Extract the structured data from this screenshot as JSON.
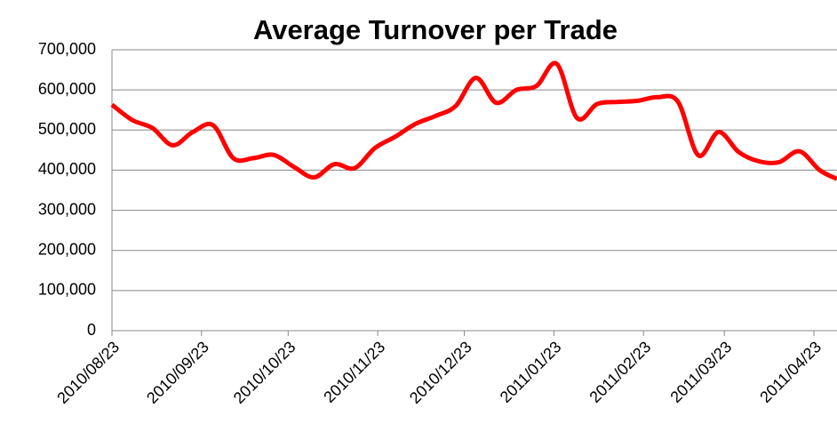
{
  "chart_data": {
    "type": "line",
    "title": "Average Turnover per Trade",
    "x": [
      "2010/08/23",
      "2010/08/30",
      "2010/09/06",
      "2010/09/13",
      "2010/09/20",
      "2010/09/27",
      "2010/10/04",
      "2010/10/11",
      "2010/10/18",
      "2010/10/25",
      "2010/11/01",
      "2010/11/08",
      "2010/11/15",
      "2010/11/22",
      "2010/11/29",
      "2010/12/06",
      "2010/12/13",
      "2010/12/20",
      "2010/12/27",
      "2011/01/03",
      "2011/01/10",
      "2011/01/17",
      "2011/01/24",
      "2011/01/31",
      "2011/02/07",
      "2011/02/14",
      "2011/02/21",
      "2011/02/28",
      "2011/03/07",
      "2011/03/14",
      "2011/03/21",
      "2011/03/28",
      "2011/04/04",
      "2011/04/11",
      "2011/04/18",
      "2011/04/25",
      "2011/05/01"
    ],
    "series": [
      {
        "name": "Average Turnover per Trade",
        "color": "#ff0000",
        "values": [
          563000,
          525000,
          505000,
          462000,
          495000,
          512000,
          430000,
          430000,
          438000,
          408000,
          382000,
          415000,
          405000,
          455000,
          483000,
          515000,
          535000,
          560000,
          630000,
          568000,
          600000,
          610000,
          665000,
          530000,
          565000,
          570000,
          573000,
          582000,
          570000,
          437000,
          495000,
          445000,
          422000,
          420000,
          447000,
          400000,
          378000
        ]
      }
    ],
    "xlim": [
      "2010/08/23",
      "2011/05/01"
    ],
    "xticks": [
      "2010/08/23",
      "2010/09/23",
      "2010/10/23",
      "2010/11/23",
      "2010/12/23",
      "2011/01/23",
      "2011/02/23",
      "2011/03/23",
      "2011/04/23"
    ],
    "ylim": [
      0,
      700000
    ],
    "yticks": [
      0,
      {
        "value": 100000,
        "label": "100,000"
      },
      {
        "value": 200000,
        "label": "200,000"
      },
      {
        "value": 300000,
        "label": "300,000"
      },
      {
        "value": 400000,
        "label": "400,000"
      },
      {
        "value": 500000,
        "label": "500,000"
      },
      {
        "value": 600000,
        "label": "600,000"
      },
      {
        "value": 700000,
        "label": "700,000"
      }
    ],
    "grid": true
  }
}
